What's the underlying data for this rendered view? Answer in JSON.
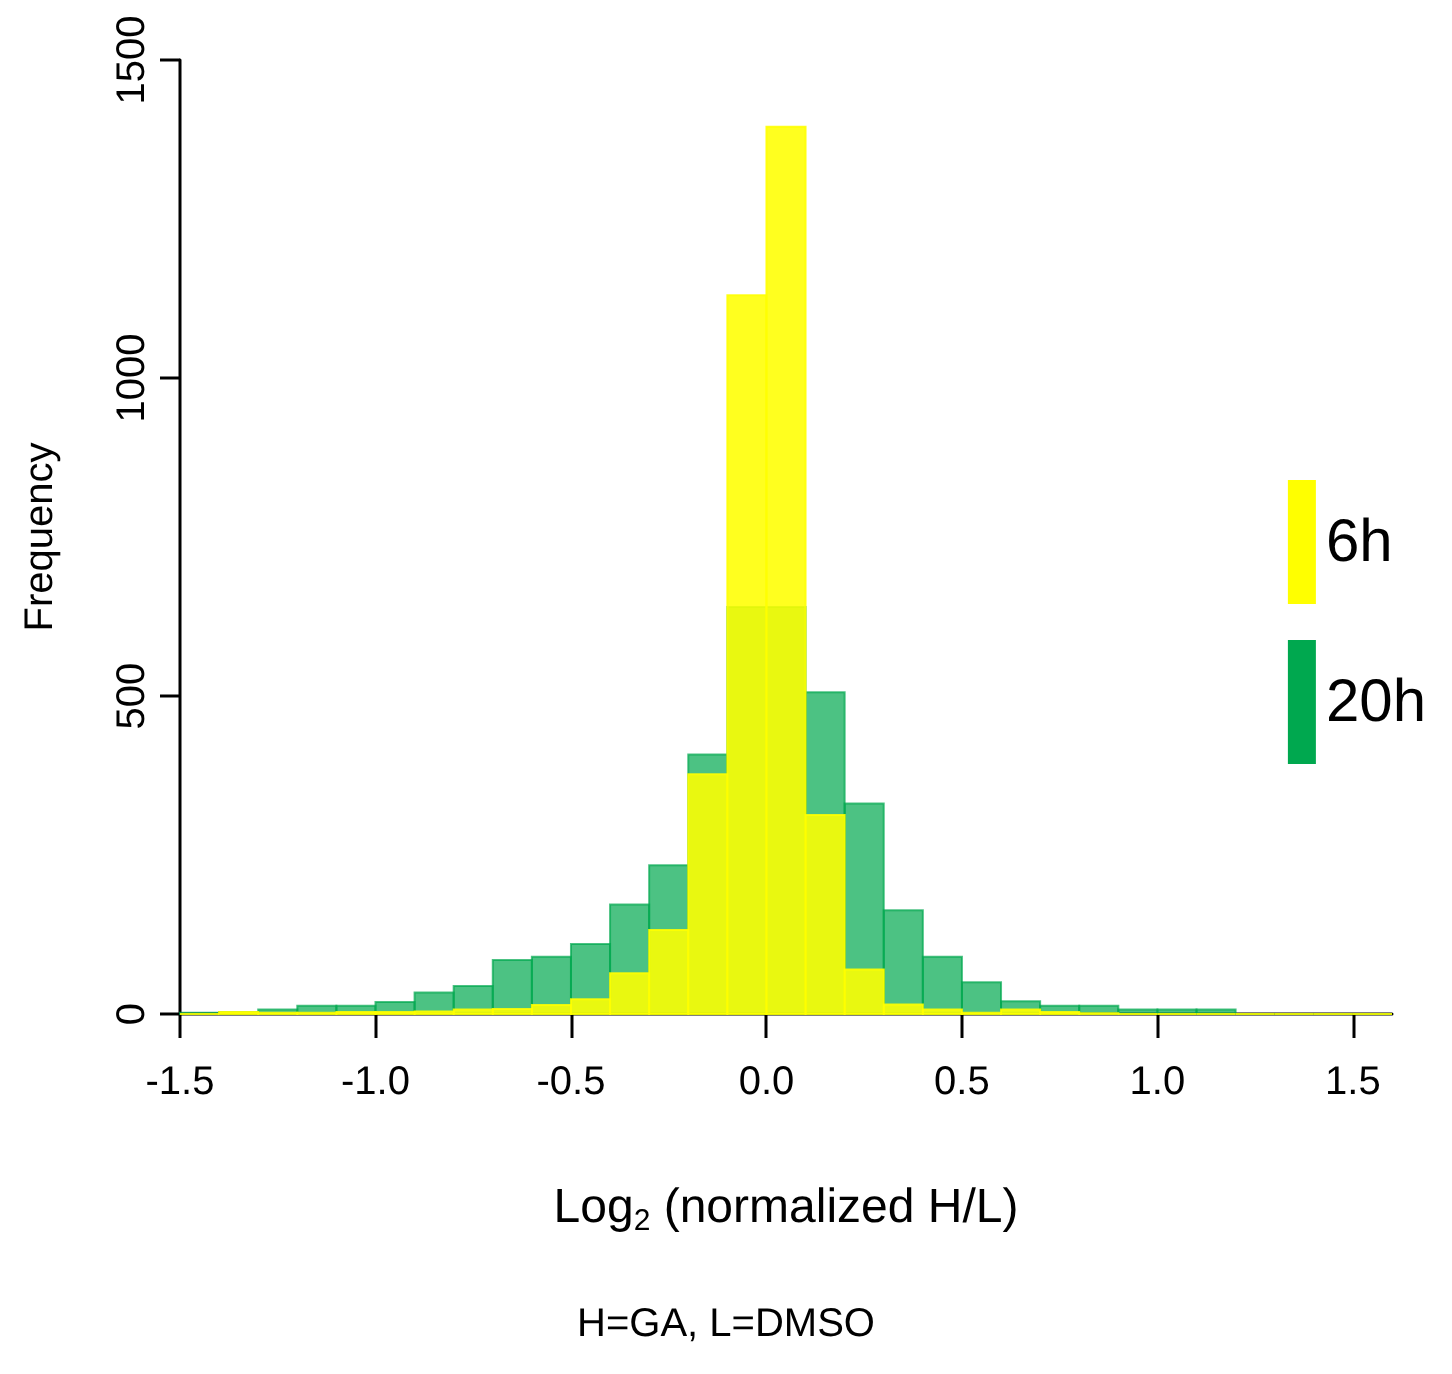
{
  "chart_data": {
    "type": "histogram",
    "xlabel": "Log$_{2}$ (normalized H/L)",
    "ylabel": "Frequency",
    "annotations": [
      "H=GA, L=DMSO"
    ],
    "bins": [
      -1.5,
      -1.4,
      -1.3,
      -1.2,
      -1.1,
      -1.0,
      -0.9,
      -0.8,
      -0.7,
      -0.6,
      -0.5,
      -0.4,
      -0.3,
      -0.2,
      -0.1,
      0.0,
      0.1,
      0.2,
      0.3,
      0.4,
      0.5,
      0.6,
      0.7,
      0.8,
      0.9,
      1.0,
      1.1,
      1.2,
      1.3,
      1.4,
      1.5,
      1.6
    ],
    "series": [
      {
        "name": "6h",
        "color": "#ffff00",
        "values": [
          0,
          3,
          2,
          2,
          3,
          3,
          4,
          7,
          8,
          14,
          23,
          64,
          132,
          377,
          1130,
          1395,
          313,
          70,
          15,
          7,
          2,
          7,
          3,
          1,
          0,
          0,
          0,
          0,
          0,
          0,
          0
        ]
      },
      {
        "name": "20h",
        "color": "#00a84f",
        "values": [
          2,
          3,
          7,
          13,
          13,
          19,
          34,
          44,
          85,
          90,
          110,
          172,
          234,
          408,
          640,
          640,
          506,
          331,
          163,
          90,
          50,
          20,
          13,
          13,
          7,
          7,
          7,
          0,
          0,
          0,
          0
        ]
      }
    ],
    "xlim": [
      -1.5,
      1.6
    ],
    "xticks": [
      -1.5,
      {
        "value": -1,
        "label": "-1.0"
      },
      -0.5,
      {
        "value": 0,
        "label": "0.0"
      },
      0.5,
      {
        "value": 1,
        "label": "1.0"
      },
      1.5
    ],
    "ylim": [
      0,
      1500
    ],
    "yticks": [
      0,
      500,
      1000,
      1500
    ],
    "grid": false,
    "legend": "right"
  }
}
